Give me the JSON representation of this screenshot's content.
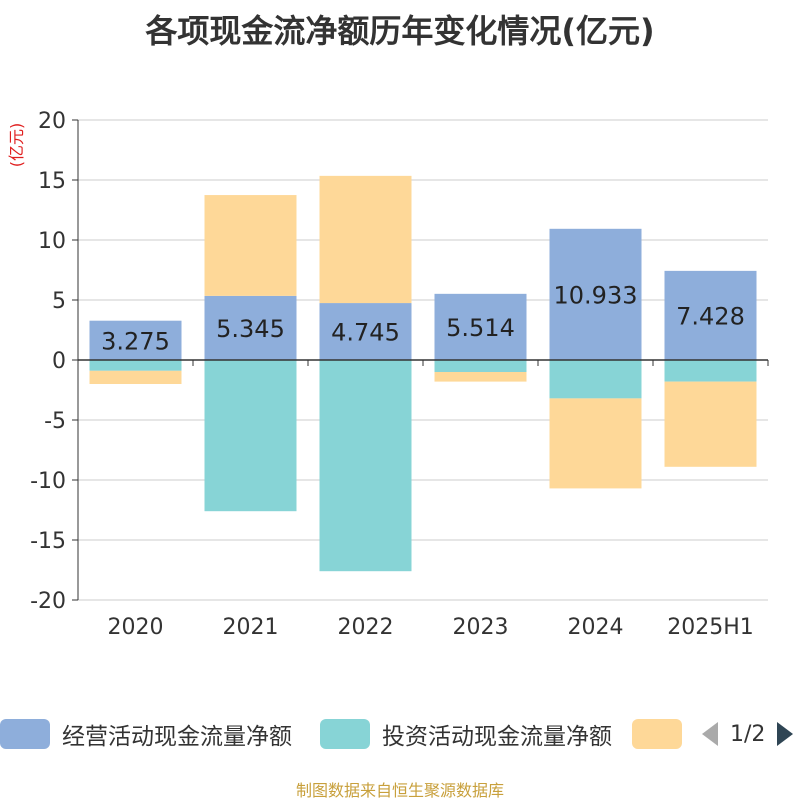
{
  "chart_data": {
    "type": "bar",
    "stacked": true,
    "title": "各项现金流净额历年变化情况(亿元)",
    "ylabel": "(亿元)",
    "ylim": [
      -20,
      20
    ],
    "yticks": [
      20,
      15,
      10,
      5,
      0,
      -5,
      -10,
      -15,
      -20
    ],
    "categories": [
      "2020",
      "2021",
      "2022",
      "2023",
      "2024",
      "2025H1"
    ],
    "series": [
      {
        "name": "经营活动现金流量净额",
        "color": "#8eaedb",
        "values": [
          3.275,
          5.345,
          4.745,
          5.514,
          10.933,
          7.428
        ],
        "labels": [
          "3.275",
          "5.345",
          "4.745",
          "5.514",
          "10.933",
          "7.428"
        ]
      },
      {
        "name": "投资活动现金流量净额",
        "color": "#87d4d6",
        "values": [
          -0.9,
          -12.6,
          -17.6,
          -1.0,
          -3.2,
          -1.8
        ]
      },
      {
        "name": "",
        "color": "#fed898",
        "values": [
          -1.1,
          8.4,
          10.6,
          -0.8,
          -7.5,
          -7.1
        ]
      }
    ],
    "grid": true,
    "legend_position": "bottom"
  },
  "pager": {
    "text": "1/2"
  },
  "source": "制图数据来自恒生聚源数据库"
}
